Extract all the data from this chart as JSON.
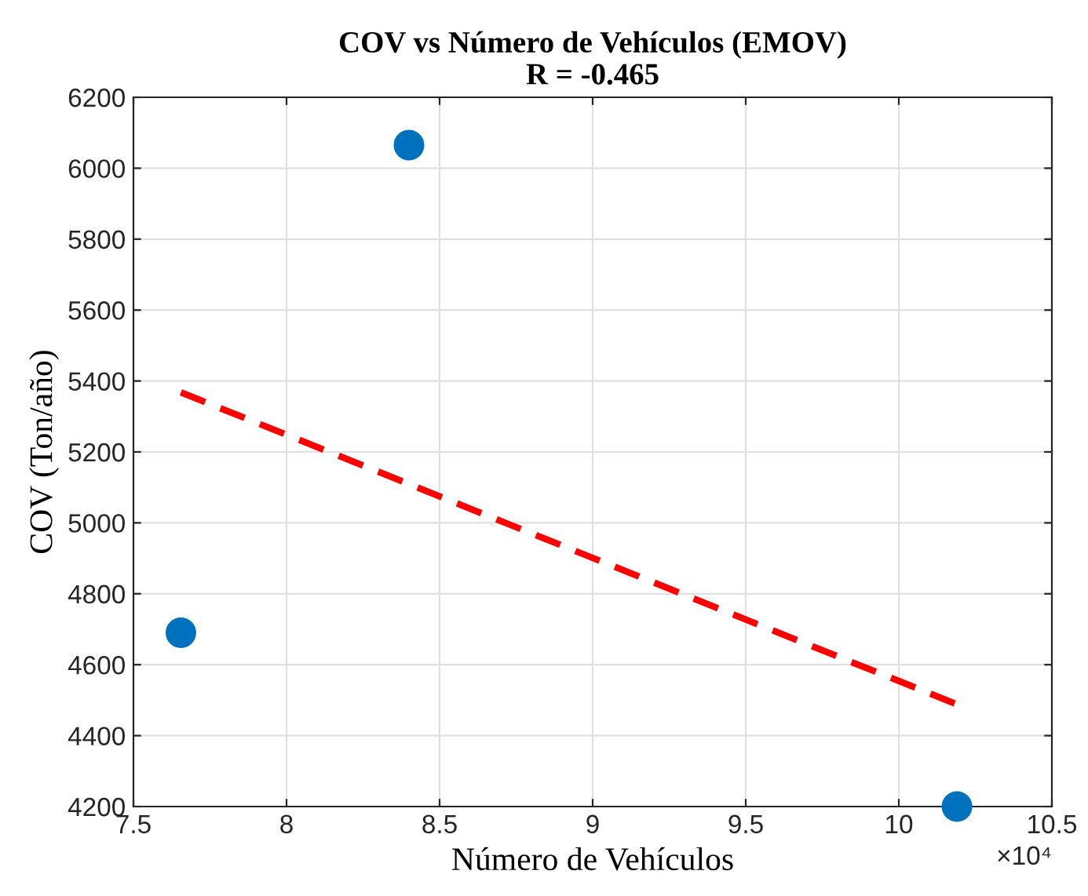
{
  "chart_data": {
    "type": "scatter",
    "title": "COV vs Número de Vehículos (EMOV)\nR = -0.465",
    "xlabel": "Número de Vehículos",
    "ylabel": "COV (Ton/año)",
    "series": [
      {
        "color": "#0072bd",
        "x": [
          7.655,
          8.4,
          10.19
        ],
        "values": [
          4690,
          6065,
          4200
        ],
        "marker": "circle"
      },
      {
        "type": "line",
        "color": "#ff0000",
        "x": [
          7.655,
          10.19
        ],
        "values": [
          5368,
          4488
        ],
        "line_style": "dashed",
        "marker": "none"
      }
    ],
    "xlim": [
      7.5,
      10.5
    ],
    "xticks": [
      7.5,
      8,
      8.5,
      9,
      9.5,
      10,
      10.5
    ],
    "ylim": [
      4200,
      6200
    ],
    "yticks": [
      4200,
      4400,
      4600,
      4800,
      5000,
      5200,
      5400,
      5600,
      5800,
      6000,
      6200
    ],
    "annotations": [
      "×10⁴"
    ],
    "grid": true,
    "legend": false
  }
}
